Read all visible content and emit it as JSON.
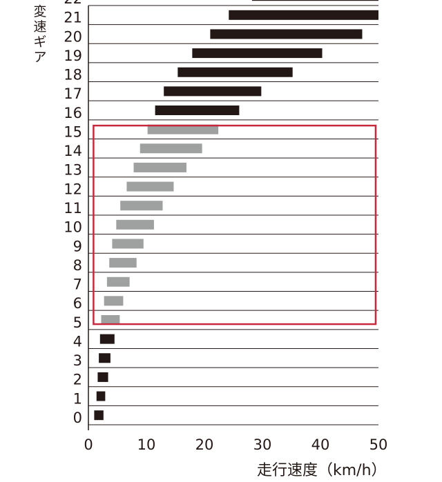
{
  "chart_data": {
    "type": "bar",
    "orientation": "horizontal",
    "title": "",
    "ylabel": "変速ギア",
    "xlabel": "走行速度（km/h）",
    "categories": [
      "0",
      "1",
      "2",
      "3",
      "4",
      "5",
      "6",
      "7",
      "8",
      "9",
      "10",
      "11",
      "12",
      "13",
      "14",
      "15",
      "16",
      "17",
      "18",
      "19",
      "20",
      "21",
      "22"
    ],
    "xlim": [
      0,
      50
    ],
    "xticks": [
      0,
      10,
      20,
      30,
      40,
      50
    ],
    "ranges": [
      {
        "gear": "1",
        "start": 1.0,
        "end": 2.6,
        "color": "#231815"
      },
      {
        "gear": "2",
        "start": 1.4,
        "end": 2.9,
        "color": "#231815"
      },
      {
        "gear": "3",
        "start": 1.6,
        "end": 3.4,
        "color": "#231815"
      },
      {
        "gear": "4",
        "start": 1.8,
        "end": 3.8,
        "color": "#231815"
      },
      {
        "gear": "5",
        "start": 2.0,
        "end": 4.5,
        "color": "#231815"
      },
      {
        "gear": "6",
        "start": 2.2,
        "end": 5.4,
        "color": "#9fa0a0"
      },
      {
        "gear": "7",
        "start": 2.7,
        "end": 6.0,
        "color": "#9fa0a0"
      },
      {
        "gear": "8",
        "start": 3.2,
        "end": 7.1,
        "color": "#9fa0a0"
      },
      {
        "gear": "9",
        "start": 3.6,
        "end": 8.3,
        "color": "#9fa0a0"
      },
      {
        "gear": "10",
        "start": 4.1,
        "end": 9.5,
        "color": "#9fa0a0"
      },
      {
        "gear": "11",
        "start": 4.8,
        "end": 11.3,
        "color": "#9fa0a0"
      },
      {
        "gear": "12",
        "start": 5.5,
        "end": 12.8,
        "color": "#9fa0a0"
      },
      {
        "gear": "13",
        "start": 6.6,
        "end": 14.7,
        "color": "#9fa0a0"
      },
      {
        "gear": "14",
        "start": 7.8,
        "end": 16.9,
        "color": "#9fa0a0"
      },
      {
        "gear": "15",
        "start": 8.9,
        "end": 19.6,
        "color": "#9fa0a0"
      },
      {
        "gear": "16",
        "start": 10.2,
        "end": 22.4,
        "color": "#9fa0a0"
      },
      {
        "gear": "17",
        "start": 11.5,
        "end": 26.0,
        "color": "#231815"
      },
      {
        "gear": "18",
        "start": 13.0,
        "end": 29.8,
        "color": "#231815"
      },
      {
        "gear": "19",
        "start": 15.4,
        "end": 35.2,
        "color": "#231815"
      },
      {
        "gear": "20",
        "start": 17.9,
        "end": 40.3,
        "color": "#231815"
      },
      {
        "gear": "21",
        "start": 21.0,
        "end": 47.2,
        "color": "#231815"
      },
      {
        "gear": "22",
        "start": 24.2,
        "end": 50.0,
        "color": "#231815"
      },
      {
        "gear": "23",
        "start": 28.2,
        "end": 50.0,
        "color": "#231815"
      }
    ],
    "highlight_box": {
      "gears_from": "6",
      "gears_to": "15",
      "x_from": 1.0,
      "x_to": 49.4,
      "color": "#c8283c"
    },
    "grid": true,
    "colors": {
      "axis": "#231815",
      "dark_bar": "#231815",
      "light_bar": "#9fa0a0",
      "highlight": "#c8283c"
    }
  }
}
